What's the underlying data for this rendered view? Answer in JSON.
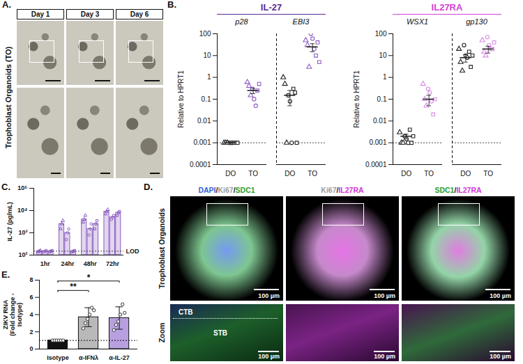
{
  "chart_data": [
    {
      "panel": "B.",
      "type": "scatter",
      "title": "IL-27",
      "color": "#5b2a91",
      "log": "y",
      "ylabel": "Relative to HPRT1",
      "ylim": [
        0.0001,
        100
      ],
      "yticks": [
        0.0001,
        0.001,
        0.01,
        0.1,
        1,
        10,
        100
      ],
      "reference_line": 0.001,
      "subplots": [
        {
          "title": "p28",
          "categories": [
            "DO",
            "TO"
          ],
          "colors": [
            "#222222",
            "#8e5cc4"
          ],
          "values": [
            [
              0.001,
              0.001,
              0.001,
              0.001,
              0.001,
              0.001,
              0.001,
              0.001,
              0.001
            ],
            [
              0.6,
              0.4,
              0.15,
              0.3,
              0.1,
              0.05,
              0.25,
              0.5
            ]
          ],
          "markers": [
            [
              "triangle",
              "triangle",
              "triangle",
              "circle",
              "circle",
              "circle",
              "square",
              "square",
              "square"
            ],
            [
              "triangle",
              "triangle",
              "triangle",
              "circle",
              "circle",
              "circle",
              "square",
              "square"
            ]
          ],
          "means": [
            0.001,
            0.25
          ],
          "errors": [
            0,
            0.07
          ]
        },
        {
          "title": "EBI3",
          "categories": [
            "DO",
            "TO"
          ],
          "colors": [
            "#222222",
            "#8e5cc4"
          ],
          "values": [
            [
              1,
              0.5,
              0.001,
              0.15,
              0.08,
              0.001,
              0.3,
              0.2,
              0.001
            ],
            [
              50,
              30,
              3,
              100,
              60,
              20,
              10,
              40,
              5
            ]
          ],
          "markers": [
            [
              "triangle",
              "triangle",
              "triangle",
              "circle",
              "circle",
              "circle",
              "square",
              "square",
              "square"
            ],
            [
              "triangle",
              "triangle",
              "triangle",
              "circle",
              "circle",
              "circle",
              "square",
              "square",
              "square"
            ]
          ],
          "means": [
            0.15,
            25
          ],
          "errors": [
            0.1,
            10
          ]
        }
      ]
    },
    {
      "type": "scatter",
      "title": "IL27RA",
      "color": "#d23fd6",
      "log": "y",
      "ylabel": "Relative to HPRT1",
      "ylim": [
        0.0001,
        100
      ],
      "yticks": [
        0.0001,
        0.001,
        0.01,
        0.1,
        1,
        10,
        100
      ],
      "reference_line": 0.001,
      "subplots": [
        {
          "title": "WSX1",
          "categories": [
            "DO",
            "TO"
          ],
          "colors": [
            "#222222",
            "#d98ce6"
          ],
          "values": [
            [
              0.003,
              0.001,
              0.001,
              0.002,
              0.0015,
              0.001,
              0.004,
              0.001,
              0.002
            ],
            [
              0.5,
              0.1,
              0.05,
              0.3,
              0.2,
              0.08,
              0.02,
              0.1
            ]
          ],
          "markers": [
            [
              "triangle",
              "triangle",
              "triangle",
              "circle",
              "circle",
              "circle",
              "square",
              "square",
              "square"
            ],
            [
              "triangle",
              "triangle",
              "triangle",
              "circle",
              "circle",
              "circle",
              "square",
              "square"
            ]
          ],
          "means": [
            0.002,
            0.1
          ],
          "errors": [
            0.0005,
            0.05
          ]
        },
        {
          "title": "gp130",
          "categories": [
            "DO",
            "TO"
          ],
          "colors": [
            "#222222",
            "#d98ce6"
          ],
          "values": [
            [
              20,
              5,
              2,
              30,
              10,
              8,
              15,
              3,
              10
            ],
            [
              50,
              15,
              10,
              70,
              30,
              20,
              20,
              40
            ]
          ],
          "markers": [
            [
              "triangle",
              "triangle",
              "triangle",
              "circle",
              "circle",
              "circle",
              "square",
              "square",
              "square"
            ],
            [
              "triangle",
              "triangle",
              "triangle",
              "circle",
              "circle",
              "circle",
              "square",
              "square"
            ]
          ],
          "means": [
            8,
            20
          ],
          "errors": [
            3,
            7
          ]
        }
      ]
    },
    {
      "panel": "C.",
      "type": "grouped_bar",
      "log": "y",
      "ylabel": "IL-27 (pg/mL)",
      "ylim": [
        100,
        100000
      ],
      "yticks": [
        {
          "value": 100,
          "label": "10²"
        },
        {
          "value": 1000,
          "label": "10³"
        },
        {
          "value": 10000,
          "label": "10⁴"
        },
        {
          "value": 100000,
          "label": "10⁵"
        }
      ],
      "reference_line": 150,
      "reference_label": "LOD",
      "categories": [
        "1hr",
        "24hr",
        "48hr",
        "72hr"
      ],
      "series": [
        {
          "marker": "triangle",
          "color": "#8a5cc0",
          "values": [
            150,
            2500,
            4000,
            9000
          ],
          "points": [
            [
              140,
              150,
              160
            ],
            [
              1500,
              2500,
              3500
            ],
            [
              3000,
              4000,
              6000
            ],
            [
              7000,
              9000,
              11000
            ]
          ]
        },
        {
          "marker": "circle",
          "color": "#8a5cc0",
          "values": [
            150,
            1000,
            1500,
            5000
          ],
          "points": [
            [
              140,
              150,
              160
            ],
            [
              500,
              1000,
              1500
            ],
            [
              800,
              1500,
              2500
            ],
            [
              4000,
              5000,
              6000
            ]
          ]
        },
        {
          "marker": "square",
          "color": "#8a5cc0",
          "values": [
            150,
            150,
            2500,
            8000
          ],
          "points": [
            [
              140,
              150,
              160
            ],
            [
              140,
              150,
              160
            ],
            [
              1500,
              2500,
              3500
            ],
            [
              6000,
              8000,
              9000
            ]
          ]
        }
      ]
    },
    {
      "panel": "E.",
      "type": "bar",
      "ylabel": "ZIKV RNA (Fold change - Isotype)",
      "ylim": [
        0,
        8
      ],
      "yticks": [
        0,
        2,
        4,
        6,
        8
      ],
      "reference_line": 1,
      "categories": [
        "Isotype",
        "α-IFNλ",
        "α-IL-27"
      ],
      "values": [
        1,
        3.7,
        3.6
      ],
      "errors": [
        0.05,
        1.1,
        1.3
      ],
      "colors": [
        "#111111",
        "#b9b9b9",
        "#b8a0e0"
      ],
      "points": [
        [
          1,
          1,
          1,
          1,
          1,
          1
        ],
        [
          2.4,
          3,
          3.5,
          4,
          4.8,
          4.5
        ],
        [
          2.2,
          2.8,
          3.2,
          4,
          5.2,
          4.2
        ]
      ],
      "annotations": [
        {
          "from": "Isotype",
          "to": "α-IFNλ",
          "text": "**",
          "y": 6.8
        },
        {
          "from": "Isotype",
          "to": "α-IL-27",
          "text": "*",
          "y": 7.9
        }
      ]
    }
  ],
  "images": {
    "A": {
      "panel": "A.",
      "side_label": "Trophoblast Organoids (TO)",
      "columns": [
        "Day 1",
        "Day 3",
        "Day 6"
      ]
    },
    "D": {
      "panel": "D.",
      "headers": [
        [
          {
            "text": "DAPI",
            "color": "#2f5fe0"
          },
          {
            "text": "/",
            "color": "#111111"
          },
          {
            "text": "Ki67",
            "color": "#9a9a9a"
          },
          {
            "text": "/",
            "color": "#111111"
          },
          {
            "text": "SDC1",
            "color": "#1f9e2f"
          }
        ],
        [
          {
            "text": "Ki67",
            "color": "#9a9a9a"
          },
          {
            "text": "/",
            "color": "#111111"
          },
          {
            "text": "IL27RA",
            "color": "#d633d6"
          }
        ],
        [
          {
            "text": "SDC1",
            "color": "#1f9e2f"
          },
          {
            "text": "/",
            "color": "#111111"
          },
          {
            "text": "IL27RA",
            "color": "#d633d6"
          }
        ]
      ],
      "row_labels": [
        "Trophoblast Organoids",
        "Zoom"
      ],
      "scale_label": "100 µm",
      "zoom_labels": [
        "CTB",
        "STB"
      ]
    }
  }
}
